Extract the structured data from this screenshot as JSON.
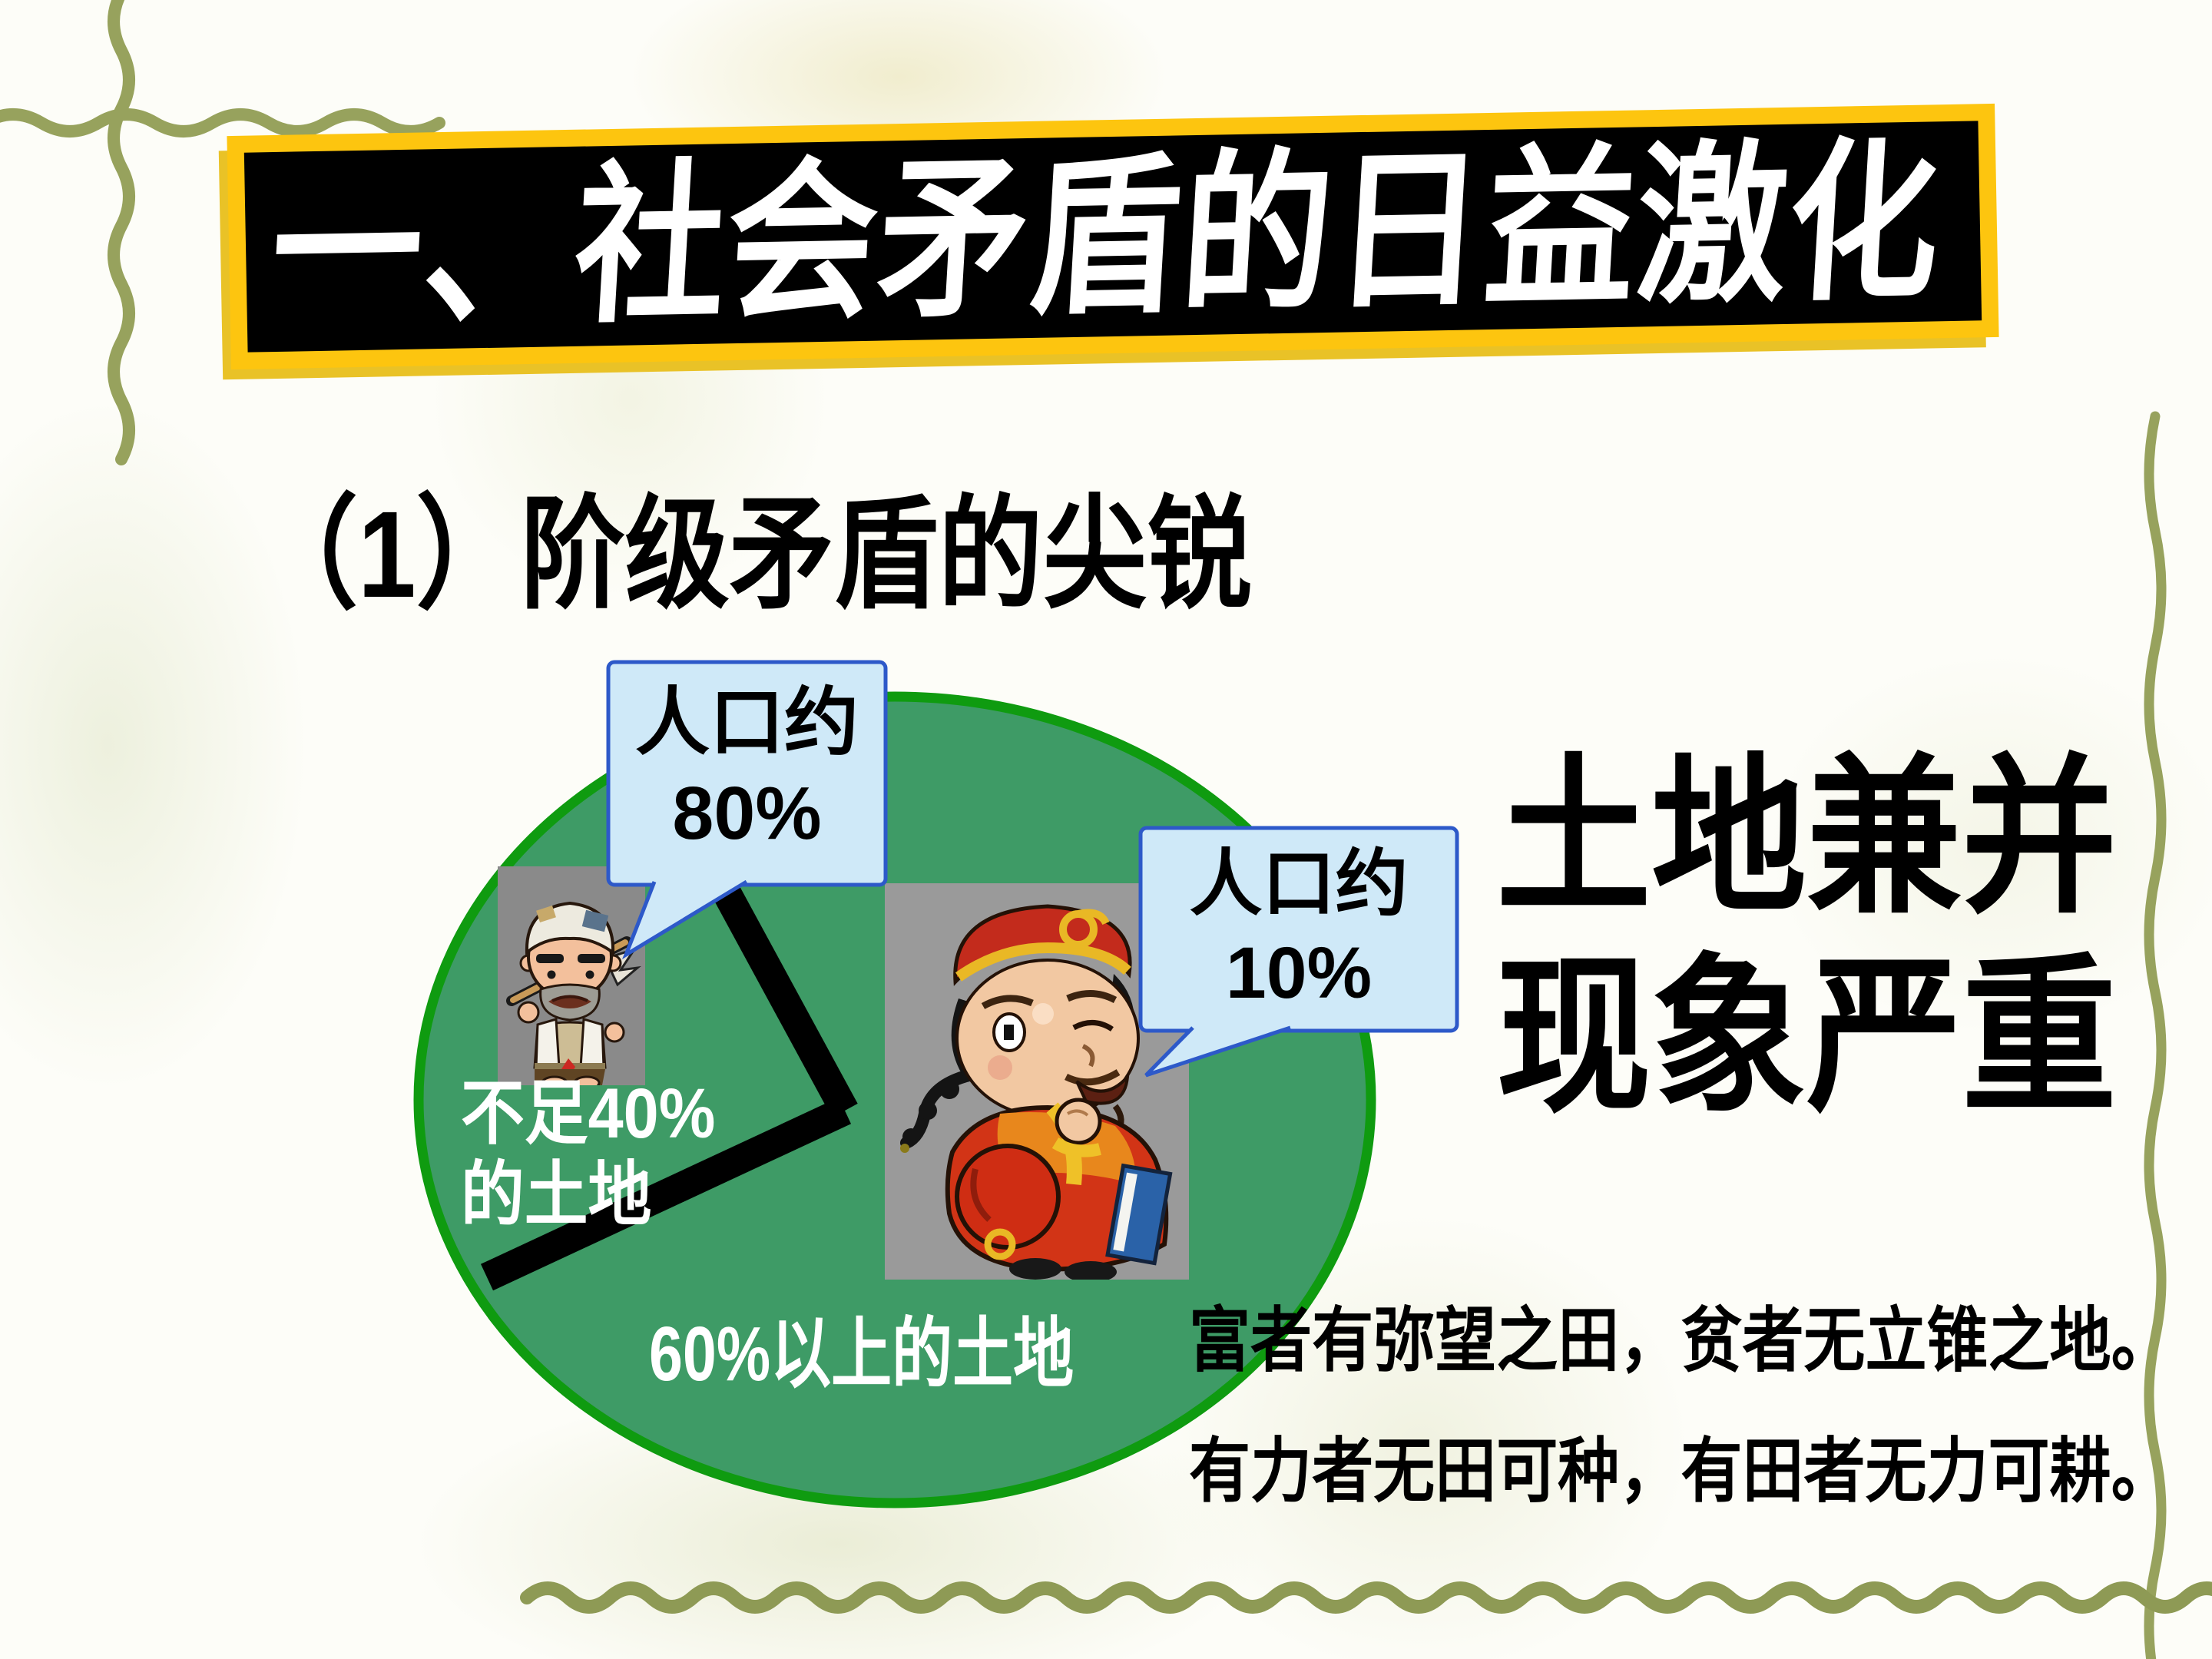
{
  "slide": {
    "title": "一、社会矛盾的日益激化",
    "section_heading": "（1）阶级矛盾的尖锐",
    "headline_line1": "土地兼并",
    "headline_line2": "现象严重",
    "quote_line1": "富者有弥望之田，贫者无立锥之地。",
    "quote_line2": "有力者无田可种，有田者无力可耕。"
  },
  "chart_data": {
    "type": "pie",
    "title": "",
    "legend_position": "none",
    "grid": false,
    "slices": [
      {
        "depicts": "peasant",
        "population_label": "人口约80%",
        "population_pct": 80,
        "land_label": "不足40%的土地",
        "land_share_note": "<40%"
      },
      {
        "depicts": "landlord",
        "population_label": "人口约10%",
        "population_pct": 10,
        "land_label": "60%以上的土地",
        "land_share_note": ">60%"
      }
    ]
  },
  "callouts": {
    "peasant": {
      "line1": "人口约",
      "line2": "80%"
    },
    "landlord": {
      "line1": "人口约",
      "line2": "10%"
    }
  },
  "pie_labels": {
    "peasant_line1": "不足40%",
    "peasant_line2": "的土地",
    "landlord": "60%以上的土地"
  },
  "colors": {
    "banner_border": "#fdc50f",
    "banner_background": "#000000",
    "title_text": "#ffffff",
    "body_text": "#000000",
    "pie_fill": "#3e9b66",
    "pie_border": "#0f9b10",
    "slice_divider": "#000000",
    "callout_fill": "#cfe9f8",
    "callout_border": "#2d59c9",
    "pie_label_text": "#ffffff",
    "vine_decoration": "#97a25d",
    "illustration_background": "#9a9a9a"
  }
}
